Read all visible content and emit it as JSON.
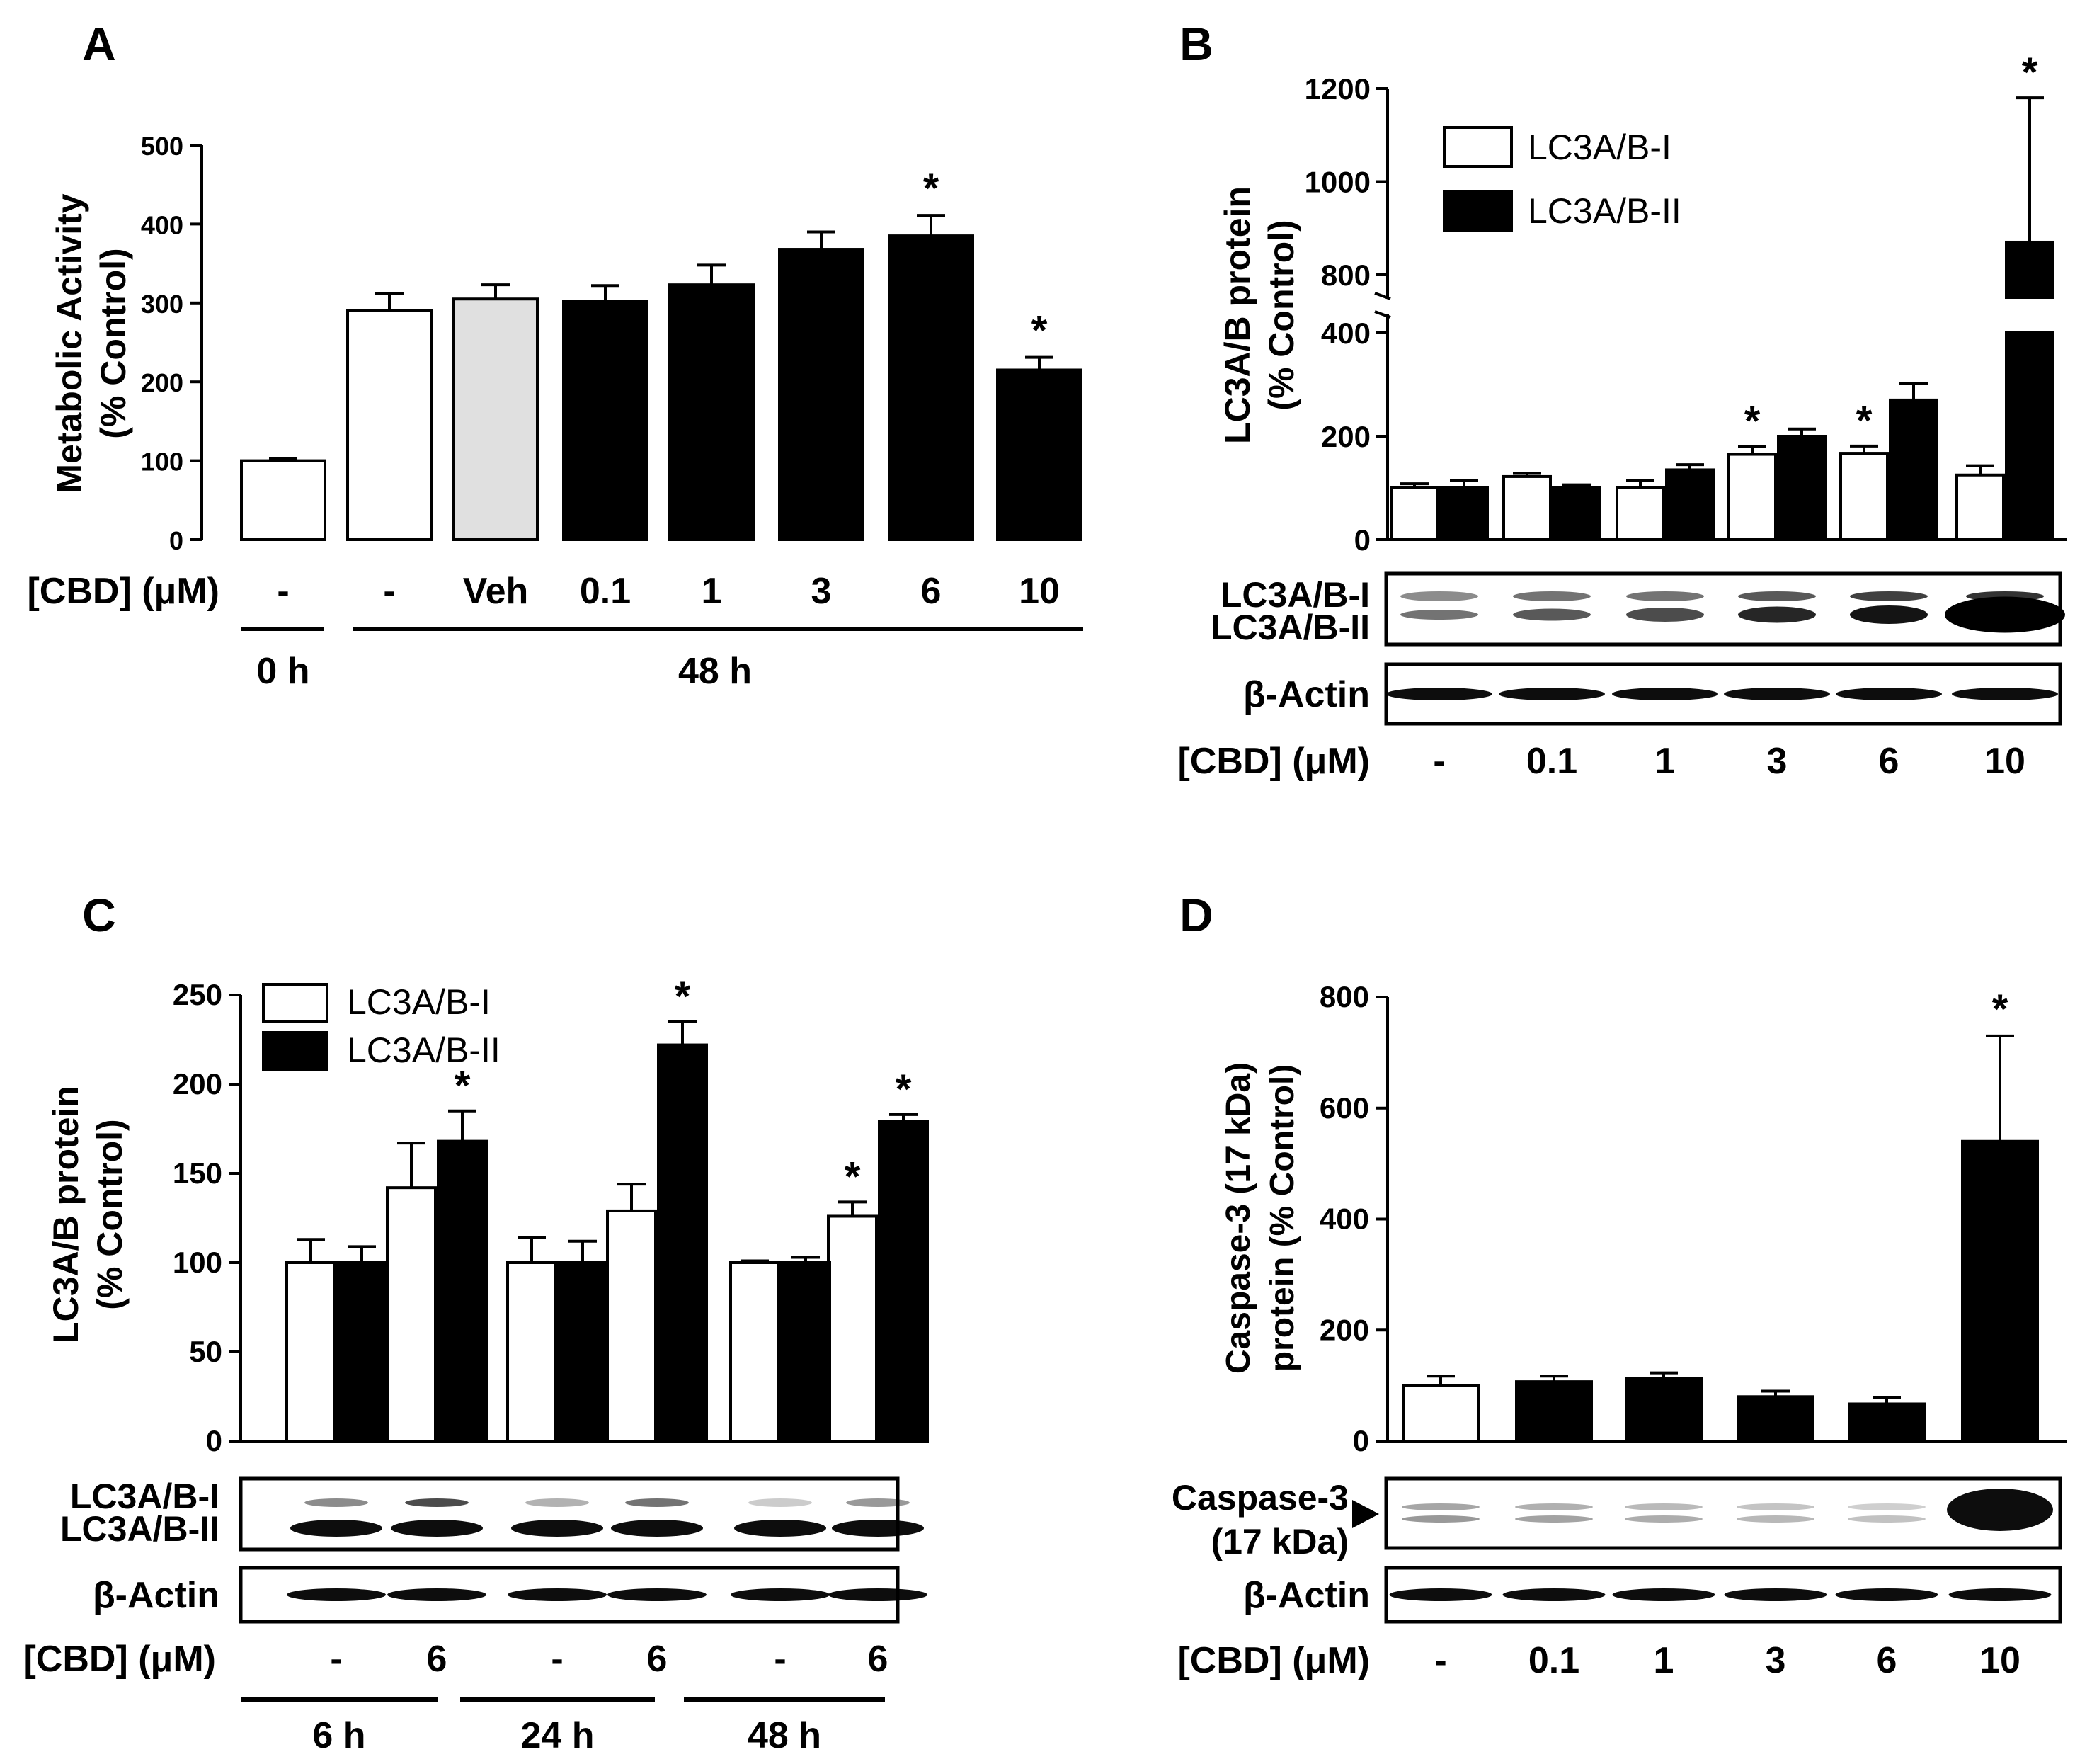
{
  "colors": {
    "ink": "#000000",
    "control_fill": "#ffffff",
    "vehicle_fill": "#e0e0e0",
    "treated_fill": "#000000",
    "blot_background": "#ffffff"
  },
  "chart_data": [
    {
      "panel": "A",
      "type": "bar",
      "ylabel": [
        "Metabolic Activity",
        "(% Control)"
      ],
      "ylim": [
        0,
        500
      ],
      "yticks": [
        0,
        100,
        200,
        300,
        400,
        500
      ],
      "x_title": "[CBD] (μM)",
      "categories": [
        "-",
        "-",
        "Veh",
        "0.1",
        "1",
        "3",
        "6",
        "10"
      ],
      "values": [
        100,
        290,
        305,
        302,
        323,
        368,
        385,
        215
      ],
      "errors": [
        3,
        22,
        18,
        20,
        25,
        22,
        26,
        16
      ],
      "fills": [
        "control",
        "control",
        "vehicle",
        "treated",
        "treated",
        "treated",
        "treated",
        "treated"
      ],
      "significant": [
        false,
        false,
        false,
        false,
        false,
        false,
        true,
        true
      ],
      "star": "*",
      "time_groups": [
        {
          "label": "0 h",
          "first": 0,
          "last": 0
        },
        {
          "label": "48 h",
          "first": 1,
          "last": 7
        }
      ]
    },
    {
      "panel": "B",
      "type": "bar",
      "ylabel": [
        "LC3A/B protein",
        "(% Control)"
      ],
      "y_break": {
        "lower": [
          0,
          400
        ],
        "upper": [
          800,
          1200
        ]
      },
      "yticks_lower": [
        0,
        200,
        400
      ],
      "yticks_upper": [
        800,
        1000,
        1200
      ],
      "x_title": "[CBD] (μM)",
      "categories": [
        "-",
        "0.1",
        "1",
        "3",
        "6",
        "10"
      ],
      "series": [
        {
          "name": "LC3A/B-I",
          "fill": "control",
          "values": [
            100,
            122,
            100,
            165,
            167,
            125
          ],
          "errors": [
            8,
            6,
            15,
            15,
            14,
            18
          ],
          "significant": [
            false,
            false,
            false,
            true,
            true,
            false
          ]
        },
        {
          "name": "LC3A/B-II",
          "fill": "treated",
          "values": [
            100,
            100,
            135,
            200,
            270,
            870
          ],
          "errors": [
            15,
            6,
            10,
            14,
            32,
            310
          ],
          "significant": [
            false,
            false,
            false,
            false,
            false,
            true
          ]
        }
      ],
      "star": "*",
      "blots": [
        {
          "labels": [
            "LC3A/B-I",
            "LC3A/B-II"
          ]
        },
        {
          "labels": [
            "β-Actin"
          ]
        }
      ]
    },
    {
      "panel": "C",
      "type": "bar",
      "ylabel": [
        "LC3A/B protein",
        "(% Control)"
      ],
      "ylim": [
        0,
        250
      ],
      "yticks": [
        0,
        50,
        100,
        150,
        200,
        250
      ],
      "x_title": "[CBD] (μM)",
      "categories": [
        "-",
        "6",
        "-",
        "6",
        "-",
        "6"
      ],
      "series": [
        {
          "name": "LC3A/B-I",
          "fill": "control",
          "values": [
            100,
            142,
            100,
            129,
            100,
            126
          ],
          "errors": [
            13,
            25,
            14,
            15,
            1,
            8
          ],
          "significant": [
            false,
            false,
            false,
            false,
            false,
            true
          ]
        },
        {
          "name": "LC3A/B-II",
          "fill": "treated",
          "values": [
            100,
            168,
            100,
            222,
            100,
            179
          ],
          "errors": [
            9,
            17,
            12,
            13,
            3,
            4
          ],
          "significant": [
            false,
            true,
            false,
            true,
            false,
            true
          ]
        }
      ],
      "star": "*",
      "time_groups": [
        {
          "label": "6 h",
          "first": 0,
          "last": 1
        },
        {
          "label": "24 h",
          "first": 2,
          "last": 3
        },
        {
          "label": "48 h",
          "first": 4,
          "last": 5
        }
      ],
      "blots": [
        {
          "labels": [
            "LC3A/B-I",
            "LC3A/B-II"
          ]
        },
        {
          "labels": [
            "β-Actin"
          ]
        }
      ]
    },
    {
      "panel": "D",
      "type": "bar",
      "ylabel": [
        "Caspase-3 (17 kDa)",
        "protein (% Control)"
      ],
      "ylim": [
        0,
        800
      ],
      "yticks": [
        0,
        200,
        400,
        600,
        800
      ],
      "x_title": "[CBD] (μM)",
      "categories": [
        "-",
        "0.1",
        "1",
        "3",
        "6",
        "10"
      ],
      "values": [
        100,
        107,
        113,
        80,
        67,
        540
      ],
      "errors": [
        17,
        10,
        10,
        10,
        12,
        190
      ],
      "fills": [
        "control",
        "treated",
        "treated",
        "treated",
        "treated",
        "treated"
      ],
      "significant": [
        false,
        false,
        false,
        false,
        false,
        true
      ],
      "star": "*",
      "blots": [
        {
          "labels": [
            "Caspase-3",
            "(17 kDa)"
          ]
        },
        {
          "labels": [
            "β-Actin"
          ]
        }
      ]
    }
  ]
}
